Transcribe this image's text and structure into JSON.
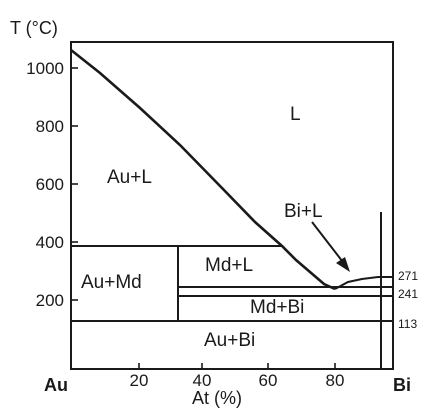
{
  "diagram": {
    "y_axis": {
      "title": "T (°C)",
      "ticks": [
        "1000",
        "800",
        "600",
        "400",
        "200"
      ]
    },
    "x_axis": {
      "title": "At (%)",
      "ticks": [
        "20",
        "40",
        "60",
        "80"
      ]
    },
    "end_labels": {
      "left": "Au",
      "right": "Bi"
    },
    "phase_labels": {
      "liquid": "L",
      "au_l": "Au+L",
      "bi_l": "Bi+L",
      "au_md": "Au+Md",
      "md_l": "Md+L",
      "md_bi": "Md+Bi",
      "au_bi": "Au+Bi"
    },
    "side_labels": {
      "t271": "271",
      "t241": "241",
      "t113": "113"
    },
    "colors": {
      "line": "#1a1a1a",
      "background": "#ffffff"
    }
  }
}
